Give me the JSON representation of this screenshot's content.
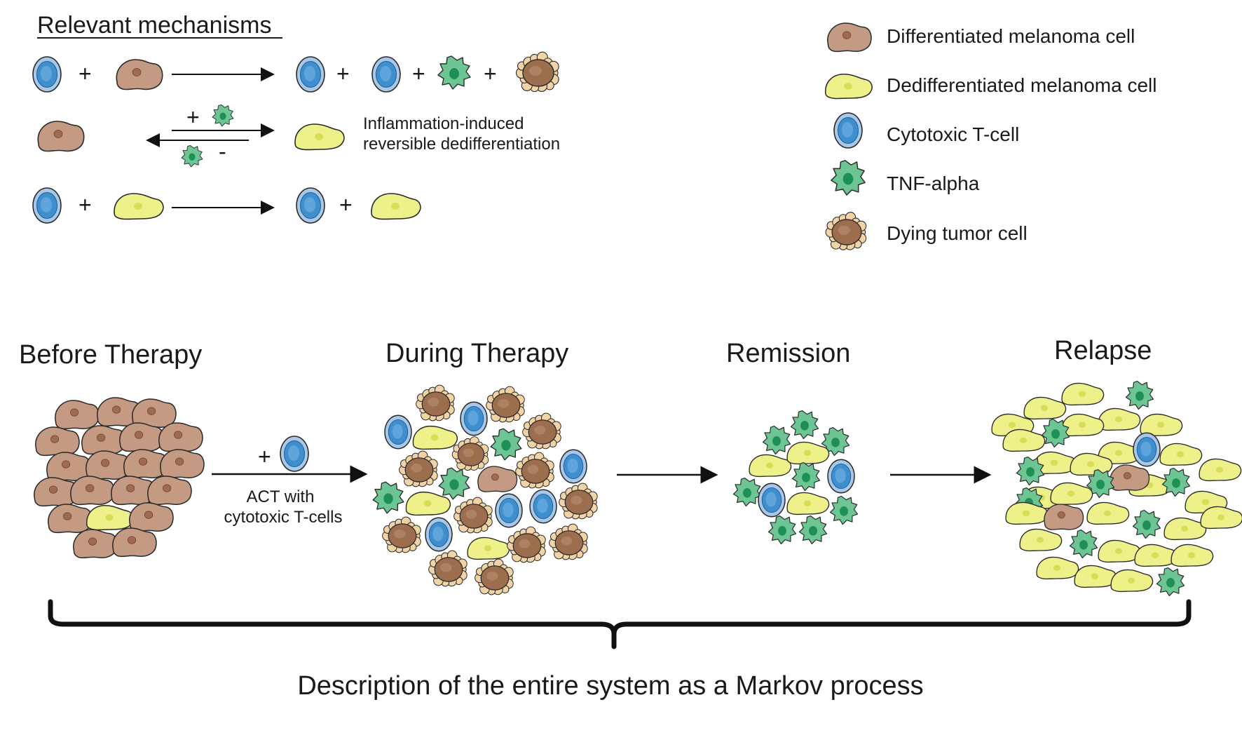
{
  "mechanisms": {
    "title": "Relevant mechanisms",
    "plus_sign": "+",
    "minus_sign": "-",
    "dedifferentiation_label_line1": "Inflammation-induced",
    "dedifferentiation_label_line2": "reversible dedifferentiation"
  },
  "legend": {
    "items": [
      {
        "label": "Differentiated melanoma cell",
        "icon": "differentiated-melanoma-cell"
      },
      {
        "label": "Dedifferentiated melanoma cell",
        "icon": "dedifferentiated-melanoma-cell"
      },
      {
        "label": "Cytotoxic T-cell",
        "icon": "cytotoxic-t-cell"
      },
      {
        "label": "TNF-alpha",
        "icon": "tnf-alpha"
      },
      {
        "label": "Dying tumor cell",
        "icon": "dying-tumor-cell"
      }
    ]
  },
  "stages": {
    "before": "Before Therapy",
    "during": "During Therapy",
    "remission": "Remission",
    "relapse": "Relapse"
  },
  "treatment": {
    "plus_sign": "+",
    "line1": "ACT with",
    "line2": "cytotoxic T-cells"
  },
  "summary": "Description of the entire system as a Markov process",
  "colors": {
    "differentiated_fill": "#c49a83",
    "differentiated_nucleus": "#a06a4f",
    "dedifferentiated_fill": "#eef08a",
    "dedifferentiated_nucleus": "#d9dc55",
    "tcell_outer": "#a9c7e8",
    "tcell_inner": "#3f8fcf",
    "tnf_fill": "#6cc592",
    "tnf_nucleus": "#1f8f58",
    "dying_core": "#9c6e4e",
    "dying_bleb": "#f1d3a6",
    "outline": "#2a2a2a"
  }
}
